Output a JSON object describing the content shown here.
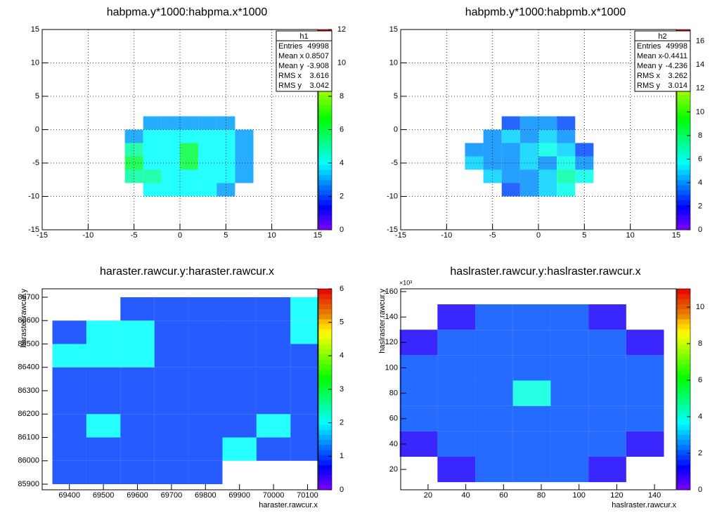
{
  "chart_data": [
    {
      "type": "heatmap",
      "title": "habpma.y*1000:habpma.x*1000",
      "xlim": [
        -15,
        15
      ],
      "ylim": [
        -15,
        15
      ],
      "zlim": [
        0,
        12
      ],
      "xticks": [
        -15,
        -10,
        -5,
        0,
        5,
        10,
        15
      ],
      "yticks": [
        -15,
        -10,
        -5,
        0,
        5,
        10,
        15
      ],
      "zticks": [
        0,
        2,
        4,
        6,
        8,
        10,
        12
      ],
      "grid": true,
      "x_edges": [
        -6,
        -4,
        -2,
        0,
        2,
        4,
        6,
        8
      ],
      "y_edges": [
        -10,
        -8,
        -6,
        -4,
        -2,
        0,
        2
      ],
      "z": [
        [
          null,
          4,
          4,
          4,
          4,
          3,
          null
        ],
        [
          5,
          5,
          4,
          4,
          4,
          4,
          3
        ],
        [
          6,
          4,
          4,
          6,
          4,
          4,
          3
        ],
        [
          5,
          4,
          4,
          6,
          4,
          4,
          3
        ],
        [
          3,
          4,
          4,
          4,
          4,
          4,
          3
        ],
        [
          null,
          3,
          3,
          3,
          3,
          3,
          null
        ]
      ],
      "stats": {
        "name": "h1",
        "rows": [
          [
            "Entries",
            "49998"
          ],
          [
            "Mean x",
            "0.8507"
          ],
          [
            "Mean y",
            "-3.908"
          ],
          [
            "RMS x",
            "3.616"
          ],
          [
            "RMS y",
            "3.042"
          ]
        ]
      }
    },
    {
      "type": "heatmap",
      "title": "habpmb.y*1000:habpmb.x*1000",
      "xlim": [
        -15,
        15
      ],
      "ylim": [
        -15,
        15
      ],
      "zlim": [
        0,
        17
      ],
      "xticks": [
        -15,
        -10,
        -5,
        0,
        5,
        10,
        15
      ],
      "yticks": [
        -15,
        -10,
        -5,
        0,
        5,
        10,
        15
      ],
      "zticks": [
        0,
        2,
        4,
        6,
        8,
        10,
        12,
        14,
        16
      ],
      "grid": true,
      "x_edges": [
        -8,
        -6,
        -4,
        -2,
        0,
        2,
        4,
        6
      ],
      "y_edges": [
        -10,
        -8,
        -6,
        -4,
        -2,
        0,
        2
      ],
      "z": [
        [
          null,
          null,
          3,
          4,
          5,
          6,
          null
        ],
        [
          null,
          5,
          4,
          4,
          5,
          7,
          6
        ],
        [
          5,
          4,
          4,
          5,
          4,
          6,
          4
        ],
        [
          4,
          4,
          4,
          5,
          6,
          5,
          3
        ],
        [
          null,
          4,
          5,
          4,
          5,
          4,
          null
        ],
        [
          null,
          null,
          3,
          4,
          4,
          3,
          null
        ]
      ],
      "stats": {
        "name": "h2",
        "rows": [
          [
            "Entries",
            "49998"
          ],
          [
            "Mean x",
            "-0.4411"
          ],
          [
            "Mean y",
            "-4.236"
          ],
          [
            "RMS x",
            "3.262"
          ],
          [
            "RMS y",
            "3.014"
          ]
        ]
      }
    },
    {
      "type": "heatmap",
      "title": "haraster.rawcur.y:haraster.rawcur.x",
      "x_label": "haraster.rawcur.x",
      "y_label": "haraster.rawcur.y",
      "xlim": [
        69320,
        70130
      ],
      "ylim": [
        85876,
        86736
      ],
      "zlim": [
        0,
        6
      ],
      "xticks": [
        69400,
        69500,
        69600,
        69700,
        69800,
        69900,
        70000,
        70100
      ],
      "yticks": [
        85900,
        86000,
        86100,
        86200,
        86300,
        86400,
        86500,
        86600,
        86700
      ],
      "zticks": [
        0,
        1,
        2,
        3,
        4,
        5,
        6
      ],
      "grid": false,
      "x_edges": [
        69350,
        69450,
        69550,
        69650,
        69750,
        69850,
        69950,
        70050,
        70150
      ],
      "y_edges": [
        85900,
        86000,
        86100,
        86200,
        86300,
        86400,
        86500,
        86600,
        86700
      ],
      "z": [
        [
          1,
          1,
          1,
          1,
          1,
          null,
          null,
          null
        ],
        [
          1,
          1,
          1,
          1,
          1,
          2,
          1,
          1
        ],
        [
          1,
          2,
          1,
          1,
          1,
          1,
          2,
          1
        ],
        [
          1,
          1,
          1,
          1,
          1,
          1,
          1,
          1
        ],
        [
          1,
          1,
          1,
          1,
          1,
          1,
          1,
          1
        ],
        [
          2,
          2,
          2,
          1,
          1,
          1,
          1,
          1
        ],
        [
          1,
          2,
          2,
          1,
          1,
          1,
          1,
          2
        ],
        [
          null,
          null,
          1,
          1,
          1,
          1,
          1,
          2
        ]
      ]
    },
    {
      "type": "heatmap",
      "title": "haslraster.rawcur.y:haslraster.rawcur.x",
      "x_label": "haslraster.rawcur.x",
      "y_label": "haslraster.rawcur.y",
      "y_exponent": "×10³",
      "xlim": [
        5.5,
        151.5
      ],
      "ylim": [
        4,
        162.2
      ],
      "zlim": [
        0,
        11
      ],
      "xticks": [
        20,
        40,
        60,
        80,
        100,
        120,
        140
      ],
      "yticks": [
        20,
        40,
        60,
        80,
        100,
        120,
        140,
        160
      ],
      "zticks": [
        0,
        2,
        4,
        6,
        8,
        10
      ],
      "grid": false,
      "x_edges": [
        5,
        25,
        45,
        65,
        85,
        105,
        125,
        145
      ],
      "y_edges": [
        10,
        30,
        50,
        70,
        90,
        110,
        130,
        150
      ],
      "z": [
        [
          null,
          1,
          2,
          2,
          2,
          1,
          null
        ],
        [
          1,
          2,
          2,
          2,
          2,
          2,
          1
        ],
        [
          2,
          2,
          2,
          2,
          2,
          2,
          2
        ],
        [
          2,
          2,
          2,
          4,
          2,
          2,
          2
        ],
        [
          2,
          2,
          2,
          2,
          2,
          2,
          2
        ],
        [
          1,
          2,
          2,
          2,
          2,
          2,
          1
        ],
        [
          null,
          1,
          2,
          2,
          2,
          1,
          null
        ]
      ]
    }
  ]
}
